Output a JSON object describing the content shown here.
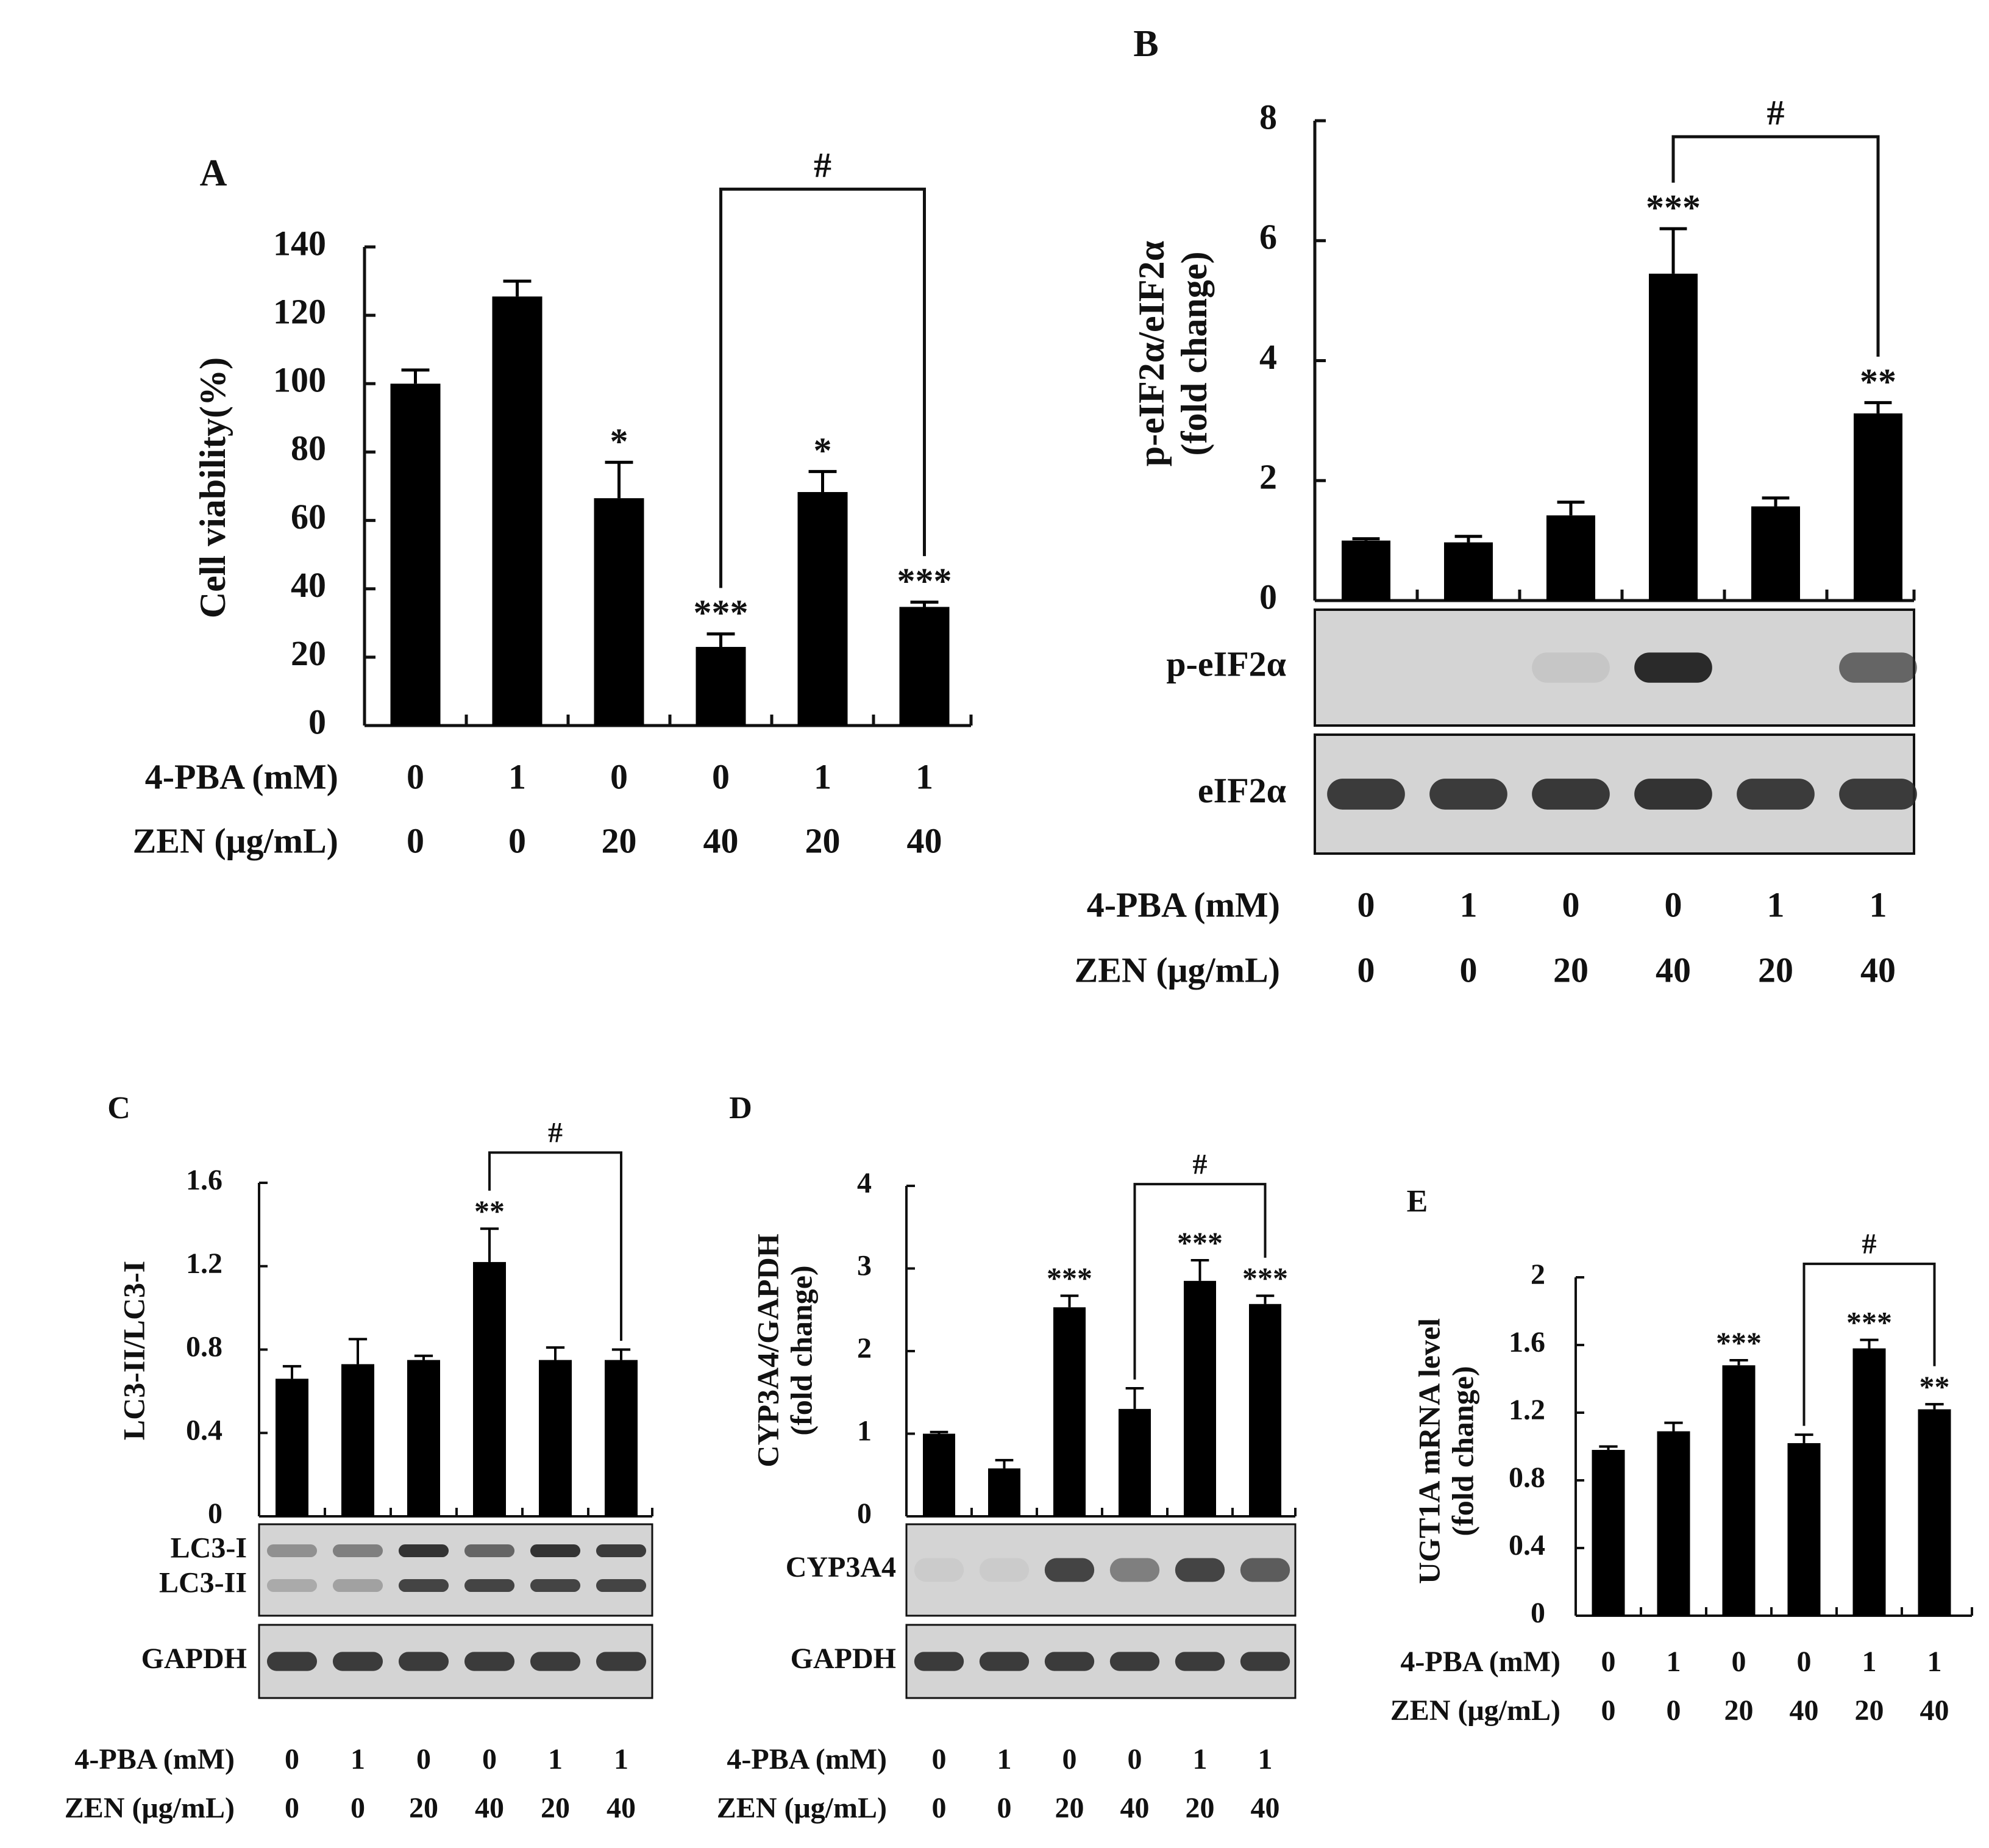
{
  "figure": {
    "colors": {
      "bar": "#000000",
      "axis": "#111111",
      "blot_bg": "#d4d4d4",
      "band": "#2a2a2a"
    },
    "treatments": {
      "pba_label": "4-PBA (mM)",
      "zen_label": "ZEN (μg/mL)",
      "pba": [
        "0",
        "1",
        "0",
        "0",
        "1",
        "1"
      ],
      "zen": [
        "0",
        "0",
        "20",
        "40",
        "20",
        "40"
      ]
    }
  },
  "chart_data": [
    {
      "id": "A",
      "panel_label": "A",
      "type": "bar",
      "ylabel": "Cell viability(%)",
      "ylabel2": "",
      "ylim": [
        0,
        140
      ],
      "yticks": [
        "0",
        "20",
        "40",
        "60",
        "80",
        "100",
        "120",
        "140"
      ],
      "categories": [
        "0/0",
        "1/0",
        "0/20",
        "0/40",
        "1/20",
        "1/40"
      ],
      "values": [
        100,
        125.5,
        66.5,
        23,
        68.3,
        34.7
      ],
      "errors": [
        4,
        4.5,
        10.5,
        3.8,
        6,
        1.4
      ],
      "significance": [
        "",
        "",
        "*",
        "***",
        "*",
        "***"
      ],
      "bracket": {
        "from": 3,
        "to": 5,
        "label": "#"
      },
      "blots": []
    },
    {
      "id": "B",
      "panel_label": "B",
      "type": "bar",
      "ylabel": "p-eIF2α/eIF2α",
      "ylabel2": "(fold change)",
      "ylim": [
        0,
        8
      ],
      "yticks": [
        "0",
        "2",
        "4",
        "6",
        "8"
      ],
      "categories": [
        "0/0",
        "1/0",
        "0/20",
        "0/40",
        "1/20",
        "1/40"
      ],
      "values": [
        1,
        0.97,
        1.42,
        5.45,
        1.57,
        3.12
      ],
      "errors": [
        0.03,
        0.1,
        0.22,
        0.75,
        0.14,
        0.18
      ],
      "significance": [
        "",
        "",
        "",
        "***",
        "",
        "**"
      ],
      "bracket": {
        "from": 3,
        "to": 5,
        "label": "#"
      },
      "blots": [
        {
          "label": "p-eIF2α",
          "label2": "",
          "intensity": [
            0,
            0,
            0.08,
            1,
            0,
            0.65
          ],
          "intensity2": []
        },
        {
          "label": "eIF2α",
          "label2": "",
          "intensity": [
            0.9,
            0.9,
            0.92,
            0.95,
            0.9,
            0.9
          ],
          "intensity2": []
        }
      ]
    },
    {
      "id": "C",
      "panel_label": "C",
      "type": "bar",
      "ylabel": "LC3-II/LC3-I",
      "ylabel2": "",
      "ylim": [
        0,
        1.6
      ],
      "yticks": [
        "0",
        "0.4",
        "0.8",
        "1.2",
        "1.6"
      ],
      "categories": [
        "0/0",
        "1/0",
        "0/20",
        "0/40",
        "1/20",
        "1/40"
      ],
      "values": [
        0.66,
        0.73,
        0.75,
        1.22,
        0.75,
        0.75
      ],
      "errors": [
        0.06,
        0.12,
        0.02,
        0.16,
        0.06,
        0.05
      ],
      "significance": [
        "",
        "",
        "",
        "**",
        "",
        ""
      ],
      "bracket": {
        "from": 3,
        "to": 5,
        "label": "#"
      },
      "blots": [
        {
          "label": "LC3-I",
          "label2": "LC3-II",
          "intensity": [
            0.4,
            0.5,
            0.95,
            0.65,
            0.95,
            0.9
          ],
          "intensity2": [
            0.25,
            0.3,
            0.85,
            0.85,
            0.85,
            0.85
          ]
        },
        {
          "label": "GAPDH",
          "label2": "",
          "intensity": [
            0.9,
            0.9,
            0.9,
            0.9,
            0.9,
            0.9
          ],
          "intensity2": []
        }
      ]
    },
    {
      "id": "D",
      "panel_label": "D",
      "type": "bar",
      "ylabel": "CYP3A4/GAPDH",
      "ylabel2": "(fold change)",
      "ylim": [
        0,
        4
      ],
      "yticks": [
        "0",
        "1",
        "2",
        "3",
        "4"
      ],
      "categories": [
        "0/0",
        "1/0",
        "0/20",
        "0/40",
        "1/20",
        "1/40"
      ],
      "values": [
        1,
        0.58,
        2.53,
        1.3,
        2.85,
        2.57
      ],
      "errors": [
        0.02,
        0.1,
        0.14,
        0.25,
        0.25,
        0.1
      ],
      "significance": [
        "",
        "",
        "***",
        "",
        "***",
        "***"
      ],
      "bracket": {
        "from": 3,
        "to": 5,
        "label": "#"
      },
      "blots": [
        {
          "label": "CYP3A4",
          "label2": "",
          "intensity": [
            0.05,
            0.05,
            0.85,
            0.5,
            0.85,
            0.7
          ],
          "intensity2": []
        },
        {
          "label": "GAPDH",
          "label2": "",
          "intensity": [
            0.9,
            0.9,
            0.9,
            0.9,
            0.9,
            0.9
          ],
          "intensity2": []
        }
      ]
    },
    {
      "id": "E",
      "panel_label": "E",
      "type": "bar",
      "ylabel": "UGT1A mRNA level",
      "ylabel2": "(fold change)",
      "ylim": [
        0,
        2
      ],
      "yticks": [
        "0",
        "0.4",
        "0.8",
        "1.2",
        "1.6",
        "2"
      ],
      "categories": [
        "0/0",
        "1/0",
        "0/20",
        "0/40",
        "1/20",
        "1/40"
      ],
      "values": [
        0.98,
        1.09,
        1.48,
        1.02,
        1.58,
        1.22
      ],
      "errors": [
        0.02,
        0.05,
        0.03,
        0.05,
        0.05,
        0.03
      ],
      "significance": [
        "",
        "",
        "***",
        "",
        "***",
        "**"
      ],
      "bracket": {
        "from": 3,
        "to": 5,
        "label": "#"
      },
      "blots": []
    }
  ]
}
